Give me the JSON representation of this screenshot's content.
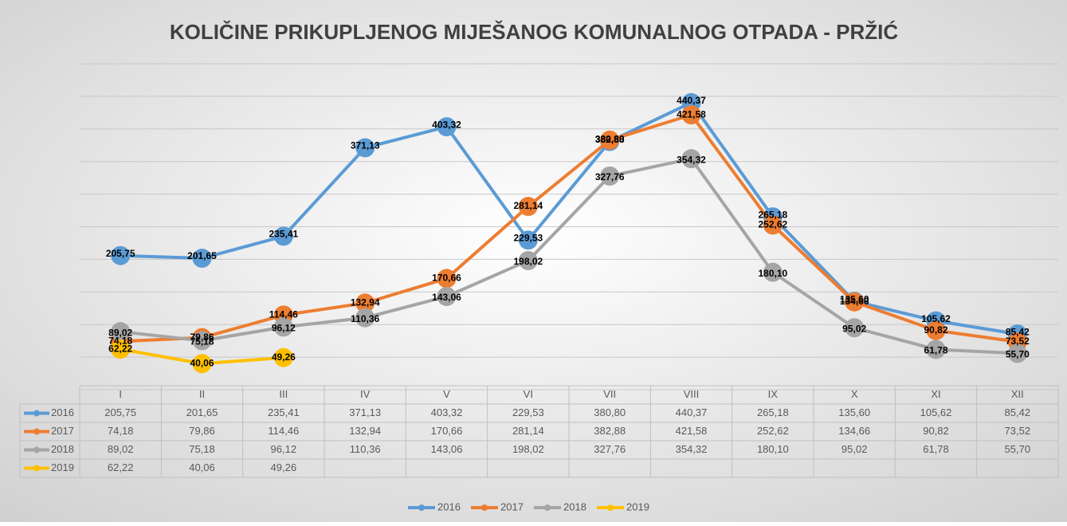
{
  "chart_data": {
    "type": "line",
    "title": "KOLIČINE PRIKUPLJENOG MIJEŠANOG KOMUNALNOG OTPADA - PRŽIĆ",
    "categories": [
      "I",
      "II",
      "III",
      "IV",
      "V",
      "VI",
      "VII",
      "VIII",
      "IX",
      "X",
      "XI",
      "XII"
    ],
    "series": [
      {
        "name": "2016",
        "color": "#5b9bd5",
        "values": [
          205.75,
          201.65,
          235.41,
          371.13,
          403.32,
          229.53,
          380.8,
          440.37,
          265.18,
          135.6,
          105.62,
          85.42
        ],
        "value_labels": [
          "205,75",
          "201,65",
          "235,41",
          "371,13",
          "403,32",
          "229,53",
          "380,80",
          "440,37",
          "265,18",
          "135,60",
          "105,62",
          "85,42"
        ]
      },
      {
        "name": "2017",
        "color": "#ed7d31",
        "values": [
          74.18,
          79.86,
          114.46,
          132.94,
          170.66,
          281.14,
          382.88,
          421.58,
          252.62,
          134.66,
          90.82,
          73.52
        ],
        "value_labels": [
          "74,18",
          "79,86",
          "114,46",
          "132,94",
          "170,66",
          "281,14",
          "382,88",
          "421,58",
          "252,62",
          "134,66",
          "90,82",
          "73,52"
        ]
      },
      {
        "name": "2018",
        "color": "#a5a5a5",
        "values": [
          89.02,
          75.18,
          96.12,
          110.36,
          143.06,
          198.02,
          327.76,
          354.32,
          180.1,
          95.02,
          61.78,
          55.7
        ],
        "value_labels": [
          "89,02",
          "75,18",
          "96,12",
          "110,36",
          "143,06",
          "198,02",
          "327,76",
          "354,32",
          "180,10",
          "95,02",
          "61,78",
          "55,70"
        ]
      },
      {
        "name": "2019",
        "color": "#ffc000",
        "values": [
          62.22,
          40.06,
          49.26,
          null,
          null,
          null,
          null,
          null,
          null,
          null,
          null,
          null
        ],
        "value_labels": [
          "62,22",
          "40,06",
          "49,26",
          null,
          null,
          null,
          null,
          null,
          null,
          null,
          null,
          null
        ]
      }
    ],
    "ylim": [
      0,
      500
    ],
    "yticks": [
      0,
      50,
      100,
      150,
      200,
      250,
      300,
      350,
      400,
      450,
      500
    ],
    "grid": true,
    "legend": "bottom"
  }
}
